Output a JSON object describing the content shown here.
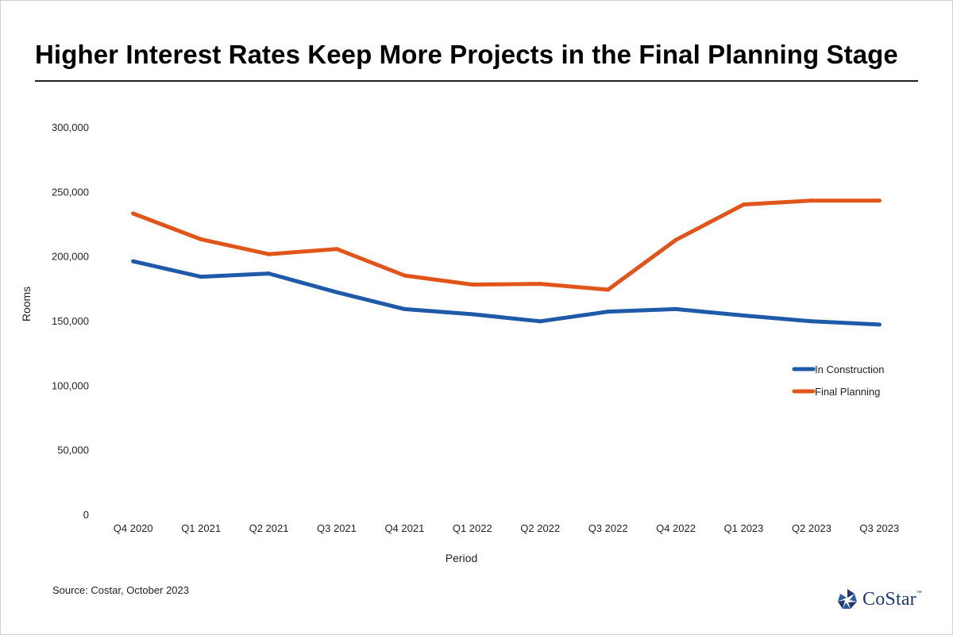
{
  "page": {
    "title": "Higher Interest Rates Keep More Projects in the Final Planning Stage",
    "source": "Source: Costar, October 2023",
    "logo_text": "CoStar",
    "logo_tm": "™"
  },
  "colors": {
    "in_construction": "#1f5aa8",
    "final_planning": "#e0561a",
    "axis_text": "#222222",
    "logo": "#1f3a6e"
  },
  "chart_data": {
    "type": "line",
    "title": "Higher Interest Rates Keep More Projects in the Final Planning Stage",
    "xlabel": "Period",
    "ylabel": "Rooms",
    "ylim": [
      0,
      300000
    ],
    "yticks": [
      0,
      50000,
      100000,
      150000,
      200000,
      250000,
      300000
    ],
    "ytick_labels": [
      "0",
      "50,000",
      "100,000",
      "150,000",
      "200,000",
      "250,000",
      "300,000"
    ],
    "grid": false,
    "legend_position": "right",
    "categories": [
      "Q4 2020",
      "Q1 2021",
      "Q2 2021",
      "Q3 2021",
      "Q4 2021",
      "Q1 2022",
      "Q2 2022",
      "Q3 2022",
      "Q4 2022",
      "Q1 2023",
      "Q2 2023",
      "Q3 2023"
    ],
    "series": [
      {
        "name": "In Construction",
        "color": "#1f5aa8",
        "values": [
          196000,
          184000,
          186500,
          172000,
          159000,
          155000,
          149500,
          157000,
          159000,
          154000,
          149500,
          147000
        ]
      },
      {
        "name": "Final Planning",
        "color": "#e0561a",
        "values": [
          233000,
          213000,
          201500,
          205500,
          185000,
          178000,
          178500,
          174000,
          212500,
          240000,
          243000,
          243000
        ]
      }
    ]
  }
}
